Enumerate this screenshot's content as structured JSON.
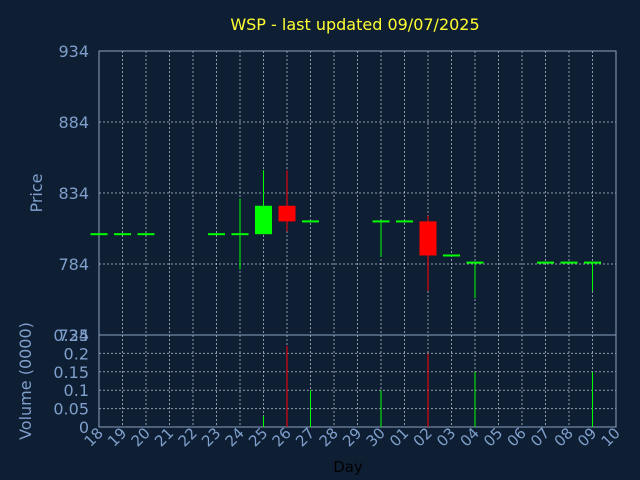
{
  "chart_data": {
    "type": "candlestick",
    "title": "WSP - last updated 09/07/2025",
    "xlabel": "Day",
    "price_axis": {
      "ylabel": "Price",
      "ylim": [
        734,
        934
      ],
      "ticks": [
        734,
        784,
        834,
        884,
        934
      ],
      "tick_labels": [
        "734",
        "784",
        "834",
        "884",
        "934"
      ]
    },
    "volume_axis": {
      "ylabel": "Volume (0000)",
      "ylim": [
        0,
        0.25
      ],
      "ticks": [
        0,
        0.05,
        0.1,
        0.15,
        0.2,
        0.25
      ],
      "tick_labels": [
        "0",
        "0.05",
        "0.1",
        "0.15",
        "0.2",
        "0.25"
      ]
    },
    "days": [
      "18",
      "19",
      "20",
      "21",
      "22",
      "23",
      "24",
      "25",
      "26",
      "27",
      "28",
      "29",
      "30",
      "01",
      "02",
      "03",
      "04",
      "05",
      "06",
      "07",
      "08",
      "09",
      "10"
    ],
    "candles": [
      {
        "day": "18",
        "open": 805,
        "close": 805,
        "high": 805,
        "low": 805,
        "volume": 0
      },
      {
        "day": "19",
        "open": 805,
        "close": 805,
        "high": 805,
        "low": 805,
        "volume": 0
      },
      {
        "day": "20",
        "open": 805,
        "close": 805,
        "high": 805,
        "low": 805,
        "volume": 0
      },
      {
        "day": "23",
        "open": 805,
        "close": 805,
        "high": 805,
        "low": 805,
        "volume": 0
      },
      {
        "day": "24",
        "open": 805,
        "close": 805,
        "high": 830,
        "low": 780,
        "volume": 0
      },
      {
        "day": "25",
        "open": 805,
        "close": 825,
        "high": 850,
        "low": 805,
        "volume": 0.03
      },
      {
        "day": "26",
        "open": 825,
        "close": 814,
        "high": 850,
        "low": 807,
        "volume": 0.22
      },
      {
        "day": "27",
        "open": 814,
        "close": 814,
        "high": 814,
        "low": 814,
        "volume": 0.1
      },
      {
        "day": "30",
        "open": 814,
        "close": 814,
        "high": 814,
        "low": 789,
        "volume": 0.1
      },
      {
        "day": "01",
        "open": 814,
        "close": 814,
        "high": 814,
        "low": 814,
        "volume": 0
      },
      {
        "day": "02",
        "open": 814,
        "close": 790,
        "high": 818,
        "low": 765,
        "volume": 0.2
      },
      {
        "day": "03",
        "open": 790,
        "close": 790,
        "high": 790,
        "low": 790,
        "volume": 0
      },
      {
        "day": "04",
        "open": 785,
        "close": 785,
        "high": 785,
        "low": 760,
        "volume": 0.15
      },
      {
        "day": "07",
        "open": 785,
        "close": 785,
        "high": 785,
        "low": 785,
        "volume": 0
      },
      {
        "day": "08",
        "open": 785,
        "close": 785,
        "high": 785,
        "low": 785,
        "volume": 0
      },
      {
        "day": "09",
        "open": 785,
        "close": 785,
        "high": 785,
        "low": 765,
        "volume": 0.15
      }
    ],
    "grid": true,
    "colors": {
      "up": "#00ff00",
      "down": "#ff0000",
      "background": "#0f1f33",
      "title": "#ffff33",
      "axis_text": "#7f9fcc"
    }
  }
}
